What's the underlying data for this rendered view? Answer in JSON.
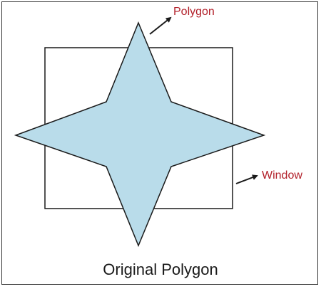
{
  "diagram": {
    "caption": "Original Polygon",
    "labels": {
      "polygon": "Polygon",
      "window": "Window"
    },
    "colors": {
      "polygon_fill": "#b9dcea",
      "outline": "#1a1a1a",
      "label_text": "#b2202a",
      "arrow": "#1a1a1a"
    }
  }
}
